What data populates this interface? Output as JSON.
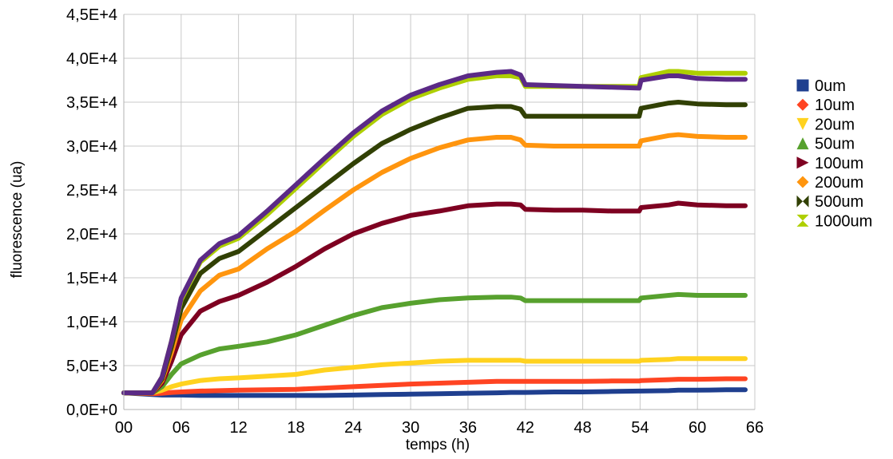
{
  "chart_data": {
    "type": "line",
    "title": "",
    "xlabel": "temps (h)",
    "ylabel": "fluorescence  (ua)",
    "xlim": [
      0,
      66
    ],
    "ylim": [
      0,
      45000
    ],
    "grid": true,
    "legend_position": "right",
    "x_ticks": [
      0,
      6,
      12,
      18,
      24,
      30,
      36,
      42,
      48,
      54,
      60,
      66
    ],
    "x_tick_labels": [
      "00",
      "06",
      "12",
      "18",
      "24",
      "30",
      "36",
      "42",
      "48",
      "54",
      "60",
      "66"
    ],
    "y_ticks": [
      0,
      5000,
      10000,
      15000,
      20000,
      25000,
      30000,
      35000,
      40000,
      45000
    ],
    "y_tick_labels": [
      "0,0E+0",
      "5,0E+3",
      "1,0E+4",
      "1,5E+4",
      "2,0E+4",
      "2,5E+4",
      "3,0E+4",
      "3,5E+4",
      "4,0E+4",
      "4,5E+4"
    ],
    "x": [
      0,
      3,
      4,
      5,
      6,
      8,
      10,
      12,
      15,
      18,
      21,
      24,
      27,
      30,
      33,
      36,
      39,
      40.5,
      41.5,
      42,
      45,
      48,
      51,
      53.9,
      54.1,
      57,
      58,
      60,
      63,
      65
    ],
    "series": [
      {
        "name": "0um",
        "color": "#1f3f8f",
        "marker": "square",
        "values": [
          1900,
          1700,
          1650,
          1650,
          1650,
          1600,
          1600,
          1600,
          1600,
          1600,
          1600,
          1650,
          1700,
          1750,
          1800,
          1850,
          1900,
          1950,
          1950,
          1950,
          2000,
          2000,
          2050,
          2100,
          2100,
          2150,
          2200,
          2200,
          2250,
          2250
        ]
      },
      {
        "name": "10um",
        "color": "#ff4422",
        "marker": "diamond",
        "values": [
          1900,
          1800,
          1850,
          1950,
          2000,
          2100,
          2150,
          2200,
          2250,
          2300,
          2450,
          2600,
          2750,
          2900,
          3000,
          3100,
          3200,
          3200,
          3200,
          3200,
          3200,
          3200,
          3250,
          3250,
          3300,
          3400,
          3450,
          3450,
          3500,
          3500
        ]
      },
      {
        "name": "20um",
        "color": "#ffd21f",
        "marker": "triangle-down",
        "values": [
          1900,
          1900,
          2200,
          2600,
          2900,
          3300,
          3500,
          3600,
          3800,
          4000,
          4500,
          4800,
          5100,
          5300,
          5500,
          5600,
          5600,
          5600,
          5600,
          5500,
          5500,
          5500,
          5500,
          5500,
          5600,
          5700,
          5800,
          5800,
          5800,
          5800
        ]
      },
      {
        "name": "50um",
        "color": "#57a12e",
        "marker": "triangle-up",
        "values": [
          1900,
          1900,
          2600,
          4000,
          5200,
          6200,
          6900,
          7200,
          7700,
          8500,
          9600,
          10700,
          11600,
          12100,
          12500,
          12700,
          12800,
          12800,
          12700,
          12400,
          12400,
          12400,
          12400,
          12400,
          12700,
          13000,
          13100,
          13000,
          13000,
          13000
        ]
      },
      {
        "name": "100um",
        "color": "#7e0021",
        "marker": "triangle-right",
        "values": [
          1900,
          1900,
          3000,
          5500,
          8500,
          11200,
          12300,
          13000,
          14500,
          16300,
          18300,
          20000,
          21200,
          22100,
          22600,
          23200,
          23400,
          23400,
          23300,
          22800,
          22700,
          22700,
          22600,
          22600,
          23000,
          23300,
          23500,
          23300,
          23200,
          23200
        ]
      },
      {
        "name": "200um",
        "color": "#ff950e",
        "marker": "diamond",
        "values": [
          1900,
          1900,
          3300,
          6500,
          10200,
          13500,
          15300,
          16000,
          18300,
          20300,
          22700,
          25000,
          27000,
          28600,
          29800,
          30700,
          31000,
          31000,
          30700,
          30100,
          30000,
          30000,
          30000,
          30000,
          30600,
          31200,
          31300,
          31100,
          31000,
          31000
        ]
      },
      {
        "name": "500um",
        "color": "#314004",
        "marker": "bowtie",
        "values": [
          1900,
          1900,
          3500,
          7200,
          11500,
          15500,
          17200,
          18000,
          20500,
          23000,
          25500,
          28000,
          30300,
          31900,
          33200,
          34300,
          34500,
          34500,
          34200,
          33400,
          33400,
          33400,
          33400,
          33400,
          34300,
          34900,
          35000,
          34800,
          34700,
          34700
        ]
      },
      {
        "name": "1000um",
        "color": "#aecf00",
        "marker": "hourglass",
        "values": [
          1900,
          1900,
          3700,
          7800,
          12500,
          16800,
          18600,
          19500,
          22200,
          25200,
          28200,
          31100,
          33600,
          35400,
          36600,
          37600,
          38000,
          38000,
          37800,
          36800,
          36800,
          36800,
          36800,
          36800,
          37800,
          38500,
          38500,
          38300,
          38300,
          38300
        ]
      },
      {
        "name": "",
        "color": "#5b2a86",
        "marker": "none",
        "values": [
          1900,
          1900,
          3700,
          7800,
          12700,
          17000,
          18900,
          19800,
          22600,
          25600,
          28600,
          31500,
          34000,
          35800,
          37000,
          38000,
          38400,
          38500,
          38100,
          37000,
          36900,
          36800,
          36700,
          36600,
          37500,
          38000,
          38000,
          37700,
          37600,
          37600
        ]
      }
    ]
  }
}
